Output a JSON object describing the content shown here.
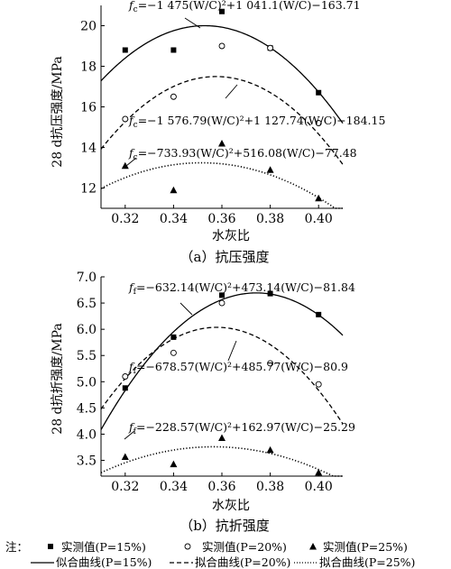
{
  "chart_data": [
    {
      "type": "scatter",
      "panel_caption": "（a）抗压强度",
      "xlabel": "水灰比",
      "ylabel": "28 d抗压强度/MPa",
      "xlim": [
        0.31,
        0.41
      ],
      "ylim": [
        11.0,
        21.0
      ],
      "xticks": [
        "0.32",
        "0.34",
        "0.36",
        "0.38",
        "0.40"
      ],
      "yticks": [
        "12",
        "14",
        "16",
        "18",
        "20"
      ],
      "ytick_values": [
        12,
        14,
        16,
        18,
        20
      ],
      "xtick_values": [
        0.32,
        0.34,
        0.36,
        0.38,
        0.4
      ],
      "series": [
        {
          "name": "实测值(P=15%)",
          "marker": "square",
          "points": [
            [
              0.32,
              18.8
            ],
            [
              0.34,
              18.8
            ],
            [
              0.36,
              20.7
            ],
            [
              0.38,
              18.9
            ],
            [
              0.4,
              16.7
            ]
          ],
          "fit": {
            "a": -1475,
            "b": 1041.1,
            "c": -163.71,
            "style": "solid",
            "equation": "fc=−1 475(W/C)²+1 041.1(W/C)−163.71",
            "eq_main": "=−1 475(W/C)²+1 041.1(W/C)−163.71"
          }
        },
        {
          "name": "实测值(P=20%)",
          "marker": "circle",
          "points": [
            [
              0.32,
              15.4
            ],
            [
              0.34,
              16.5
            ],
            [
              0.36,
              19.0
            ],
            [
              0.38,
              18.9
            ],
            [
              0.4,
              15.2
            ]
          ],
          "fit": {
            "a": -1576.79,
            "b": 1127.74,
            "c": -184.15,
            "style": "dashed",
            "equation": "fc=−1 576.79(W/C)²+1 127.74(W/C)−184.15",
            "eq_main": "=−1 576.79(W/C)²+1 127.74(W/C)−184.15"
          }
        },
        {
          "name": "实测值(P=25%)",
          "marker": "triangle",
          "points": [
            [
              0.32,
              13.1
            ],
            [
              0.34,
              11.9
            ],
            [
              0.36,
              14.2
            ],
            [
              0.38,
              12.9
            ],
            [
              0.4,
              11.5
            ]
          ],
          "fit": {
            "a": -733.93,
            "b": 516.08,
            "c": -77.48,
            "style": "dotted",
            "equation": "fc=−733.93(W/C)²+516.08(W/C)−77.48",
            "eq_main": "=−733.93(W/C)²+516.08(W/C)−77.48"
          }
        }
      ]
    },
    {
      "type": "scatter",
      "panel_caption": "（b）抗折强度",
      "xlabel": "水灰比",
      "ylabel": "28 d抗折强度/MPa",
      "xlim": [
        0.31,
        0.41
      ],
      "ylim": [
        3.2,
        7.0
      ],
      "xticks": [
        "0.32",
        "0.34",
        "0.36",
        "0.38",
        "0.40"
      ],
      "yticks": [
        "3.5",
        "4.0",
        "4.5",
        "5.0",
        "5.5",
        "6.0",
        "6.5",
        "7.0"
      ],
      "ytick_values": [
        3.5,
        4.0,
        4.5,
        5.0,
        5.5,
        6.0,
        6.5,
        7.0
      ],
      "xtick_values": [
        0.32,
        0.34,
        0.36,
        0.38,
        0.4
      ],
      "series": [
        {
          "name": "实测值(P=15%)",
          "marker": "square",
          "points": [
            [
              0.32,
              4.88
            ],
            [
              0.34,
              5.85
            ],
            [
              0.36,
              6.65
            ],
            [
              0.38,
              6.68
            ],
            [
              0.4,
              6.28
            ]
          ],
          "fit": {
            "a": -632.14,
            "b": 473.14,
            "c": -81.84,
            "style": "solid",
            "equation": "ff=−632.14(W/C)²+473.14(W/C)−81.84",
            "eq_main": "=−632.14(W/C)²+473.14(W/C)−81.84"
          }
        },
        {
          "name": "实测值(P=20%)",
          "marker": "circle",
          "points": [
            [
              0.32,
              5.1
            ],
            [
              0.34,
              5.55
            ],
            [
              0.36,
              6.5
            ],
            [
              0.38,
              5.35
            ],
            [
              0.4,
              4.95
            ]
          ],
          "fit": {
            "a": -678.57,
            "b": 485.77,
            "c": -80.9,
            "style": "dashed",
            "equation": "ff=−678.57(W/C)²+485.77(W/C)−80.9",
            "eq_main": "=−678.57(W/C)²+485.77(W/C)−80.9"
          }
        },
        {
          "name": "实测值(P=25%)",
          "marker": "triangle",
          "points": [
            [
              0.32,
              3.57
            ],
            [
              0.34,
              3.43
            ],
            [
              0.36,
              3.93
            ],
            [
              0.38,
              3.7
            ],
            [
              0.4,
              3.27
            ]
          ],
          "fit": {
            "a": -228.57,
            "b": 162.97,
            "c": -25.29,
            "style": "dotted",
            "equation": "ff=−228.57(W/C)²+162.97(W/C)−25.29",
            "eq_main": "=−228.57(W/C)²+162.97(W/C)−25.29"
          }
        }
      ]
    }
  ],
  "legend": {
    "prefix": "注：",
    "markers": [
      "实测值(P=15%)",
      "实测值(P=20%)",
      "实测值(P=25%)"
    ],
    "lines": [
      "似合曲线(P=15%)",
      "拟合曲线(P=20%)",
      "拟合曲线(P=25%)"
    ]
  }
}
